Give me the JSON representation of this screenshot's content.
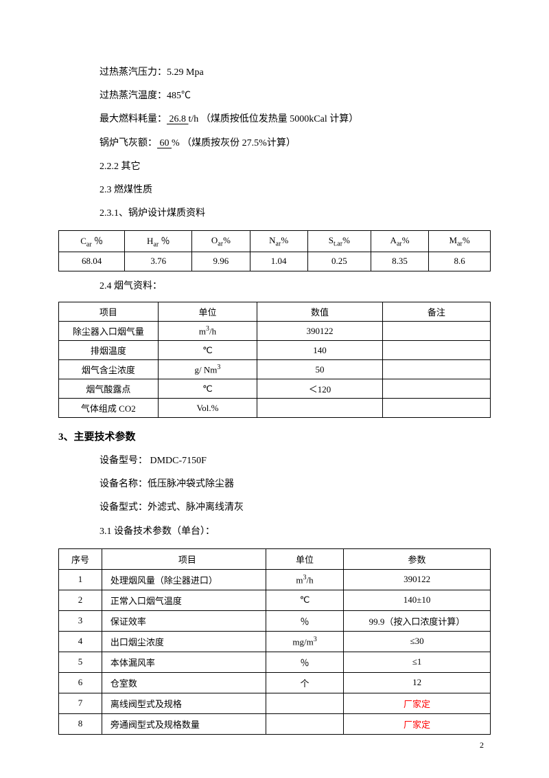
{
  "para": {
    "steam_pressure": "过热蒸汽压力：5.29 Mpa",
    "steam_temp": "过热蒸汽温度：485℃",
    "fuel_prefix": "最大燃料耗量：",
    "fuel_value": "  26.8      ",
    "fuel_unit": "t/h",
    "fuel_note": "  （煤质按低位发热量 5000kCal 计算）",
    "ash_prefix": "锅炉飞灰额：",
    "ash_value": "    60     ",
    "ash_unit": "%",
    "ash_note": "      （煤质按灰份 27.5%计算）",
    "s222": "2.2.2 其它",
    "s23": "2.3    燃煤性质",
    "s231": "2.3.1、锅炉设计煤质资料",
    "s24": "2.4 烟气资料："
  },
  "table1": {
    "headers": [
      "Car ％",
      "Har ％",
      "Oar%",
      "Nar%",
      "St.ar%",
      "Aar%",
      "Mar%"
    ],
    "row": [
      "68.04",
      "3.76",
      "9.96",
      "1.04",
      "0.25",
      "8.35",
      "8.6"
    ]
  },
  "table2": {
    "headers": [
      "项目",
      "单位",
      "数值",
      "备注"
    ],
    "rows": [
      [
        "除尘器入口烟气量",
        "m³/h",
        "390122",
        ""
      ],
      [
        "排烟温度",
        "℃",
        "140",
        ""
      ],
      [
        "烟气含尘浓度",
        "g/ Nm³",
        "50",
        ""
      ],
      [
        "烟气酸露点",
        "℃",
        "＜120",
        ""
      ],
      [
        "气体组成        CO2",
        "Vol.%",
        "",
        ""
      ]
    ]
  },
  "section3": {
    "heading": "3、主要技术参数",
    "model": "设备型号：  DMDC-7150F",
    "name": "设备名称：低压脉冲袋式除尘器",
    "type": "设备型式：外滤式、脉冲离线清灰",
    "s31": "3.1 设备技术参数（单台）："
  },
  "table3": {
    "headers": [
      "序号",
      "项目",
      "单位",
      "参数"
    ],
    "rows": [
      [
        "1",
        "处理烟风量（除尘器进口）",
        "m³/h",
        "390122"
      ],
      [
        "2",
        "正常入口烟气温度",
        "℃",
        "140±10"
      ],
      [
        "3",
        "保证效率",
        "％",
        "99.9（按入口浓度计算）"
      ],
      [
        "4",
        "出口烟尘浓度",
        "mg/m³",
        "≤30"
      ],
      [
        "5",
        "本体漏风率",
        "％",
        "≤1"
      ],
      [
        "6",
        "仓室数",
        "个",
        "12"
      ],
      [
        "7",
        "离线阀型式及规格",
        "",
        "厂家定"
      ],
      [
        "8",
        "旁通阀型式及规格数量",
        "",
        "厂家定"
      ]
    ],
    "red_rows": [
      6,
      7
    ]
  },
  "pagenum": "2"
}
